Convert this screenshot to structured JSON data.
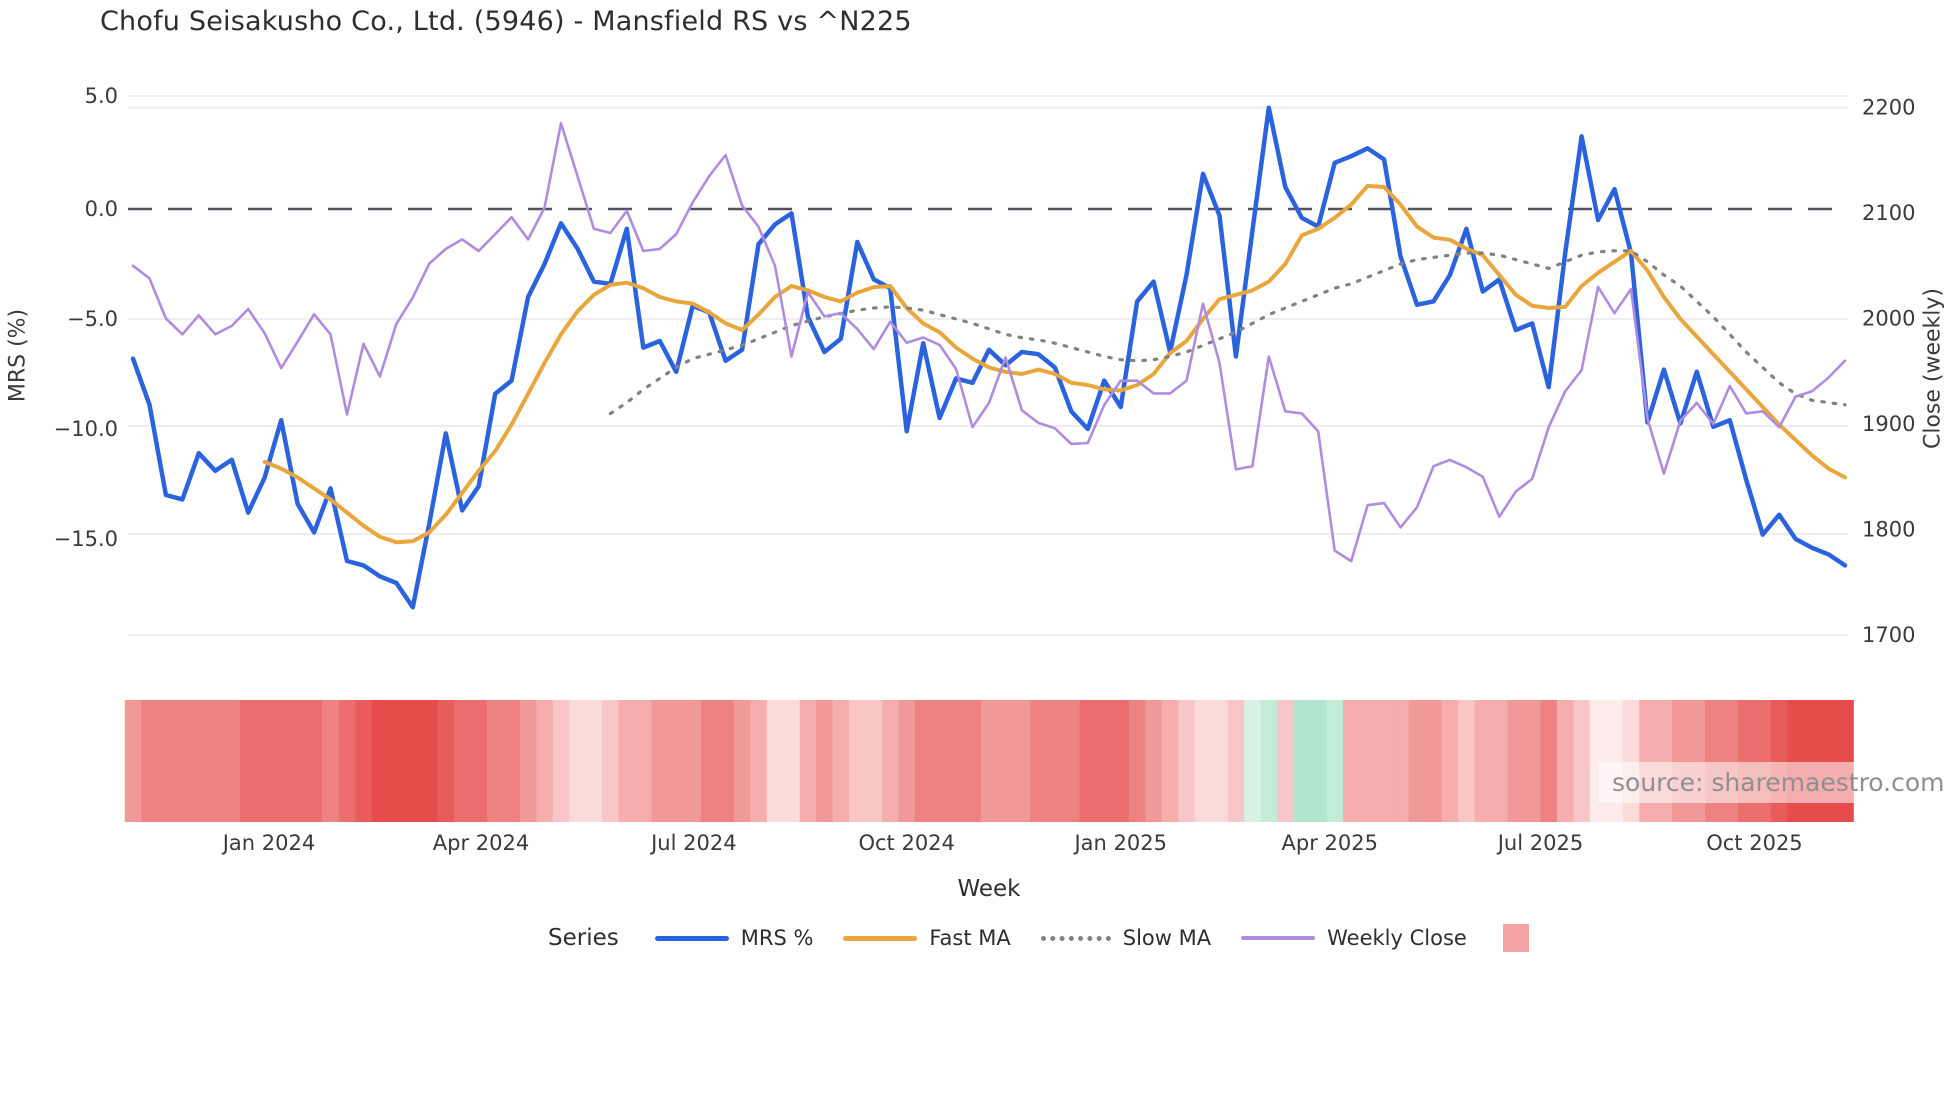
{
  "chart": {
    "title": "Chofu Seisakusho Co., Ltd. (5946) - Mansfield RS vs ^N225",
    "source_label": "source: sharemaestro.com",
    "x_axis_title": "Week",
    "left_axis_title": "MRS (%)",
    "right_axis_title": "Close (weekly)"
  },
  "legend": {
    "title": "Series",
    "items": [
      {
        "label": "MRS %",
        "color": "#2b63de",
        "style": "solid"
      },
      {
        "label": "Fast MA",
        "color": "#e8a63c",
        "style": "solid"
      },
      {
        "label": "Slow MA",
        "color": "#828282",
        "style": "dotted"
      },
      {
        "label": "Weekly Close",
        "color": "#b08cdf",
        "style": "solid"
      },
      {
        "label": "",
        "color": "#f5a3a3",
        "style": "swatch"
      }
    ]
  },
  "axes": {
    "left": {
      "ticks": [
        {
          "label": "5.0",
          "y": 96
        },
        {
          "label": "0.0",
          "y": 209
        },
        {
          "label": "−5.0",
          "y": 319
        },
        {
          "label": "−10.0",
          "y": 429
        },
        {
          "label": "−15.0",
          "y": 539
        }
      ]
    },
    "right": {
      "ticks": [
        {
          "label": "2200",
          "y": 107.5
        },
        {
          "label": "2100",
          "y": 213
        },
        {
          "label": "2000",
          "y": 318.5
        },
        {
          "label": "1900",
          "y": 424
        },
        {
          "label": "1800",
          "y": 529.5
        },
        {
          "label": "1700",
          "y": 635
        }
      ]
    },
    "x": {
      "ticks": [
        {
          "label": "Jan 2024",
          "week": 8.26
        },
        {
          "label": "Apr 2024",
          "week": 21.14
        },
        {
          "label": "Jul 2024",
          "week": 34.07
        },
        {
          "label": "Oct 2024",
          "week": 47.0
        },
        {
          "label": "Jan 2025",
          "week": 60.0
        },
        {
          "label": "Apr 2025",
          "week": 72.7
        },
        {
          "label": "Jul 2025",
          "week": 85.5
        },
        {
          "label": "Oct 2025",
          "week": 98.5
        }
      ]
    },
    "gridline_y": [
      96,
      107.5,
      319,
      426,
      534,
      635
    ],
    "zero_line_y": 209
  },
  "chart_data": {
    "type": "line",
    "title": "Chofu Seisakusho Co., Ltd. (5946) - Mansfield RS vs ^N225",
    "xlabel": "Week",
    "ylabel_left": "MRS (%)",
    "ylabel_right": "Close (weekly)",
    "x_unit": "week_index",
    "n_weeks": 105,
    "x_tick_labels": [
      "Jan 2024",
      "Apr 2024",
      "Jul 2024",
      "Oct 2024",
      "Jan 2025",
      "Apr 2025",
      "Jul 2025",
      "Oct 2025"
    ],
    "ylim_left": [
      -19.6,
      6.1
    ],
    "ylim_right": [
      1689,
      2232
    ],
    "grid": true,
    "legend_position": "bottom",
    "series": [
      {
        "name": "MRS %",
        "axis": "left",
        "style": "solid",
        "color": "#2b63de",
        "width": 4.5,
        "values": [
          -6.8,
          -8.9,
          -13.0,
          -13.2,
          -11.1,
          -11.9,
          -11.4,
          -13.8,
          -12.2,
          -9.6,
          -13.4,
          -14.7,
          -12.7,
          -16.0,
          -16.2,
          -16.7,
          -17.0,
          -18.1,
          -14.3,
          -10.2,
          -13.7,
          -12.6,
          -8.4,
          -7.8,
          -4.0,
          -2.5,
          -0.65,
          -1.8,
          -3.3,
          -3.4,
          -0.9,
          -6.3,
          -6.0,
          -7.4,
          -4.4,
          -4.7,
          -6.9,
          -6.4,
          -1.6,
          -0.7,
          -0.2,
          -4.9,
          -6.5,
          -5.9,
          -1.5,
          -3.2,
          -3.6,
          -10.1,
          -6.1,
          -9.5,
          -7.7,
          -7.9,
          -6.4,
          -7.1,
          -6.5,
          -6.6,
          -7.2,
          -9.2,
          -10.0,
          -7.8,
          -9.0,
          -4.2,
          -3.3,
          -6.5,
          -3.0,
          1.6,
          -0.3,
          -6.7,
          -1.0,
          4.6,
          1.0,
          -0.4,
          -0.8,
          2.1,
          2.4,
          2.76,
          2.25,
          -2.15,
          -4.35,
          -4.2,
          -3.0,
          -0.9,
          -3.75,
          -3.2,
          -5.5,
          -5.2,
          -8.1,
          -2.0,
          3.3,
          -0.5,
          0.9,
          -2.0,
          -9.7,
          -7.3,
          -9.75,
          -7.4,
          -9.9,
          -9.6,
          -12.3,
          -14.8,
          -13.9,
          -15.0,
          -15.4,
          -15.7,
          -16.2
        ]
      },
      {
        "name": "Fast MA",
        "axis": "left",
        "style": "solid",
        "color": "#e8a63c",
        "width": 4,
        "values": [
          null,
          null,
          null,
          null,
          null,
          null,
          null,
          null,
          -11.5,
          -11.8,
          -12.2,
          -12.7,
          -13.2,
          -13.8,
          -14.4,
          -14.9,
          -15.15,
          -15.1,
          -14.7,
          -13.9,
          -12.9,
          -11.9,
          -11.0,
          -9.8,
          -8.4,
          -7.0,
          -5.7,
          -4.65,
          -3.9,
          -3.45,
          -3.35,
          -3.6,
          -4.0,
          -4.2,
          -4.3,
          -4.7,
          -5.2,
          -5.5,
          -4.8,
          -4.0,
          -3.5,
          -3.7,
          -4.0,
          -4.2,
          -3.8,
          -3.55,
          -3.5,
          -4.5,
          -5.2,
          -5.6,
          -6.3,
          -6.8,
          -7.2,
          -7.4,
          -7.5,
          -7.3,
          -7.5,
          -7.9,
          -8.0,
          -8.2,
          -8.25,
          -8.0,
          -7.5,
          -6.55,
          -6.0,
          -5.0,
          -4.1,
          -3.9,
          -3.7,
          -3.3,
          -2.5,
          -1.2,
          -0.9,
          -0.4,
          0.2,
          1.05,
          1.0,
          0.2,
          -0.8,
          -1.3,
          -1.4,
          -1.8,
          -2.1,
          -3.0,
          -3.9,
          -4.4,
          -4.5,
          -4.45,
          -3.5,
          -2.9,
          -2.4,
          -1.9,
          -2.8,
          -4.0,
          -5.0,
          -5.8,
          -6.6,
          -7.4,
          -8.2,
          -9.0,
          -9.8,
          -10.5,
          -11.2,
          -11.8,
          -12.2
        ]
      },
      {
        "name": "Slow MA",
        "axis": "left",
        "style": "dotted",
        "color": "#828282",
        "width": 3.2,
        "values": [
          null,
          null,
          null,
          null,
          null,
          null,
          null,
          null,
          null,
          null,
          null,
          null,
          null,
          null,
          null,
          null,
          null,
          null,
          null,
          null,
          null,
          null,
          null,
          null,
          null,
          null,
          null,
          null,
          null,
          -9.3,
          -8.8,
          -8.2,
          -7.7,
          -7.2,
          -6.8,
          -6.6,
          -6.4,
          -6.2,
          -5.9,
          -5.6,
          -5.3,
          -5.1,
          -4.9,
          -4.75,
          -4.6,
          -4.5,
          -4.45,
          -4.5,
          -4.6,
          -4.8,
          -5.0,
          -5.2,
          -5.45,
          -5.7,
          -5.85,
          -5.95,
          -6.1,
          -6.3,
          -6.5,
          -6.7,
          -6.85,
          -6.9,
          -6.85,
          -6.7,
          -6.5,
          -6.2,
          -5.9,
          -5.6,
          -5.2,
          -4.8,
          -4.5,
          -4.2,
          -3.9,
          -3.6,
          -3.4,
          -3.1,
          -2.8,
          -2.5,
          -2.3,
          -2.2,
          -2.1,
          -2.0,
          -2.0,
          -2.1,
          -2.3,
          -2.5,
          -2.7,
          -2.4,
          -2.1,
          -1.95,
          -1.9,
          -1.9,
          -2.4,
          -3.0,
          -3.5,
          -4.2,
          -4.9,
          -5.7,
          -6.5,
          -7.2,
          -7.9,
          -8.4,
          -8.7,
          -8.8,
          -8.9
        ]
      },
      {
        "name": "Weekly Close",
        "axis": "right",
        "style": "solid",
        "color": "#b08cdf",
        "width": 2.6,
        "values": [
          2050,
          2038,
          2000,
          1985,
          2003,
          1985,
          1993,
          2009,
          1986,
          1953,
          1978,
          2004,
          1985,
          1909,
          1976,
          1945,
          1995,
          2020,
          2052,
          2066,
          2075,
          2064,
          2080,
          2096,
          2075,
          2105,
          2185,
          2135,
          2085,
          2081,
          2102,
          2064,
          2066,
          2080,
          2110,
          2135,
          2155,
          2107,
          2087,
          2050,
          1964,
          2025,
          2002,
          2005,
          1990,
          1971,
          1997,
          1977,
          1982,
          1975,
          1952,
          1897,
          1920,
          1963,
          1913,
          1901,
          1896,
          1881,
          1882,
          1918,
          1941,
          1941,
          1929,
          1929,
          1941,
          2014,
          1958,
          1857,
          1860,
          1964,
          1912,
          1910,
          1893,
          1780,
          1770,
          1823,
          1825,
          1802,
          1821,
          1860,
          1866,
          1859,
          1850,
          1812,
          1836,
          1848,
          1897,
          1931,
          1951,
          2030,
          2005,
          2028,
          1905,
          1853,
          1903,
          1920,
          1900,
          1936,
          1910,
          1912,
          1897,
          1926,
          1931,
          1944,
          1960
        ]
      }
    ],
    "heatmap_strip": {
      "description": "weekly color band under chart",
      "colors": [
        "#f19898",
        "#ee8282",
        "#ee8282",
        "#ee8282",
        "#ee8282",
        "#ee8282",
        "#ee8282",
        "#ec6e6e",
        "#ec6e6e",
        "#ec6e6e",
        "#ec6e6e",
        "#ec6e6e",
        "#ee8282",
        "#ec6e6e",
        "#e95c5c",
        "#e74c4c",
        "#e74c4c",
        "#e74c4c",
        "#e74c4c",
        "#e95c5c",
        "#ec6e6e",
        "#ec6e6e",
        "#ee8282",
        "#ee8282",
        "#f19898",
        "#f5adad",
        "#f8c6c6",
        "#fbdada",
        "#fbdada",
        "#f8c6c6",
        "#f5adad",
        "#f5adad",
        "#f19898",
        "#f19898",
        "#f19898",
        "#ee8282",
        "#ee8282",
        "#f19898",
        "#f5adad",
        "#fbdada",
        "#fbdada",
        "#f5adad",
        "#f19898",
        "#f5adad",
        "#f8c6c6",
        "#f8c6c6",
        "#f5adad",
        "#f19898",
        "#ee8282",
        "#ee8282",
        "#ee8282",
        "#ee8282",
        "#f19898",
        "#f19898",
        "#f19898",
        "#ee8282",
        "#ee8282",
        "#ee8282",
        "#ec6e6e",
        "#ec6e6e",
        "#ec6e6e",
        "#ee8282",
        "#f19898",
        "#f5adad",
        "#f8c6c6",
        "#fbdada",
        "#fbdada",
        "#f8c6c6",
        "#d8f0e5",
        "#c2ebd8",
        "#f8c6c6",
        "#b2e5cf",
        "#b2e5cf",
        "#c2ebd8",
        "#f5adad",
        "#f5adad",
        "#f5adad",
        "#f5adad",
        "#f19898",
        "#f19898",
        "#f5adad",
        "#f8c6c6",
        "#f5adad",
        "#f5adad",
        "#f19898",
        "#f19898",
        "#ee8282",
        "#f5adad",
        "#f8c6c6",
        "#fcecec",
        "#fcecec",
        "#fbdada",
        "#f5adad",
        "#f5adad",
        "#f19898",
        "#f19898",
        "#ee8282",
        "#ee8282",
        "#ec6e6e",
        "#ec6e6e",
        "#e95c5c",
        "#e74c4c",
        "#e74c4c",
        "#e74c4c",
        "#e74c4c"
      ]
    }
  }
}
